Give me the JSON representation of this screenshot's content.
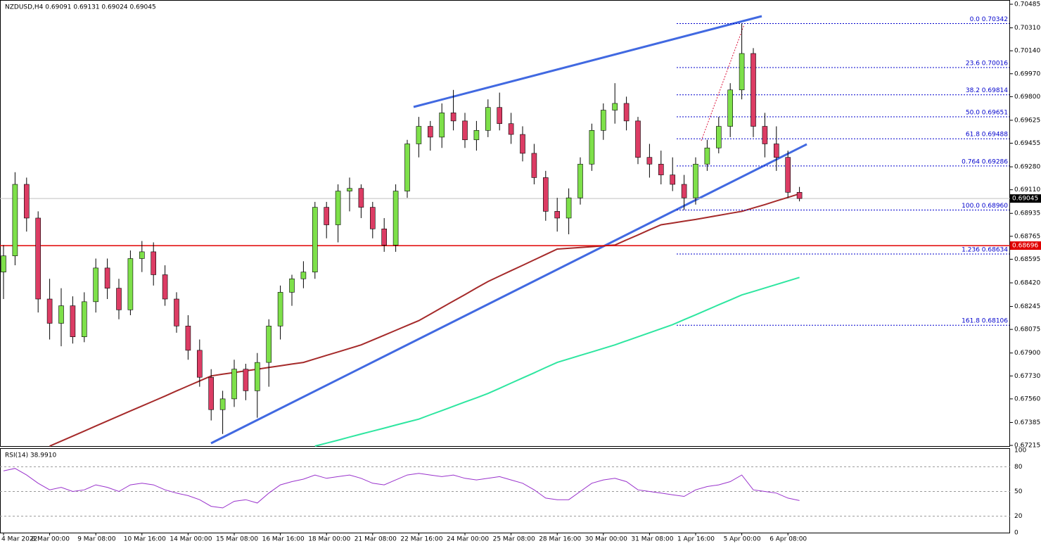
{
  "chart_data": {
    "type": "candlestick",
    "header": "NZDUSD,H4  0.69091 0.69131 0.69024 0.69045",
    "ylim": [
      0.6721,
      0.70506
    ],
    "yticks": [
      0.70485,
      {
        "value": 0.7031,
        "label": "0.70310"
      },
      {
        "value": 0.7014,
        "label": "0.70140"
      },
      {
        "value": 0.6997,
        "label": "0.69970"
      },
      {
        "value": 0.698,
        "label": "0.69800"
      },
      0.69625,
      0.69455,
      {
        "value": 0.6928,
        "label": "0.69280"
      },
      {
        "value": 0.6911,
        "label": "0.69110"
      },
      0.68935,
      0.68765,
      0.68595,
      {
        "value": 0.6842,
        "label": "0.68420"
      },
      0.68245,
      0.68075,
      {
        "value": 0.679,
        "label": "0.67900"
      },
      {
        "value": 0.6773,
        "label": "0.67730"
      },
      {
        "value": 0.6756,
        "label": "0.67560"
      },
      0.67385,
      0.67215
    ],
    "xlabels": [
      "4 Mar 2022",
      "8 Mar 00:00",
      "9 Mar 08:00",
      "10 Mar 16:00",
      "14 Mar 00:00",
      "15 Mar 08:00",
      "16 Mar 16:00",
      "18 Mar 00:00",
      "21 Mar 08:00",
      "22 Mar 16:00",
      "24 Mar 00:00",
      "25 Mar 08:00",
      "28 Mar 16:00",
      "30 Mar 00:00",
      "31 Mar 08:00",
      "1 Apr 16:00",
      "5 Apr 00:00",
      "6 Apr 08:00"
    ],
    "up_color": "#7ee04a",
    "down_color": "#dc3c64",
    "candles": [
      [
        0.685,
        0.687,
        0.683,
        0.6862
      ],
      [
        0.6862,
        0.6924,
        0.6855,
        0.6915
      ],
      [
        0.6915,
        0.692,
        0.688,
        0.689
      ],
      [
        0.689,
        0.6895,
        0.682,
        0.683
      ],
      [
        0.683,
        0.6845,
        0.68,
        0.6812
      ],
      [
        0.6812,
        0.6838,
        0.6795,
        0.6825
      ],
      [
        0.6825,
        0.6832,
        0.6797,
        0.6802
      ],
      [
        0.6802,
        0.6835,
        0.6798,
        0.6828
      ],
      [
        0.6828,
        0.686,
        0.682,
        0.6853
      ],
      [
        0.6853,
        0.686,
        0.683,
        0.6838
      ],
      [
        0.6838,
        0.6845,
        0.6815,
        0.6822
      ],
      [
        0.6822,
        0.6866,
        0.6818,
        0.686
      ],
      [
        0.686,
        0.6873,
        0.685,
        0.6865
      ],
      [
        0.6865,
        0.6872,
        0.684,
        0.6848
      ],
      [
        0.6848,
        0.6855,
        0.6825,
        0.683
      ],
      [
        0.683,
        0.6835,
        0.6805,
        0.681
      ],
      [
        0.681,
        0.6818,
        0.6785,
        0.6792
      ],
      [
        0.6792,
        0.68,
        0.6765,
        0.6772
      ],
      [
        0.6772,
        0.6778,
        0.674,
        0.6748
      ],
      [
        0.6748,
        0.6762,
        0.673,
        0.6756
      ],
      [
        0.6756,
        0.6785,
        0.675,
        0.6778
      ],
      [
        0.6778,
        0.6782,
        0.6755,
        0.6762
      ],
      [
        0.6762,
        0.679,
        0.6742,
        0.6783
      ],
      [
        0.6783,
        0.6815,
        0.6765,
        0.681
      ],
      [
        0.681,
        0.684,
        0.68,
        0.6835
      ],
      [
        0.6835,
        0.6848,
        0.6825,
        0.6845
      ],
      [
        0.6845,
        0.6858,
        0.6838,
        0.685
      ],
      [
        0.685,
        0.6902,
        0.6845,
        0.6898
      ],
      [
        0.6898,
        0.6902,
        0.6875,
        0.6885
      ],
      [
        0.6885,
        0.6915,
        0.6872,
        0.691
      ],
      [
        0.691,
        0.692,
        0.6895,
        0.6912
      ],
      [
        0.6912,
        0.6915,
        0.689,
        0.6898
      ],
      [
        0.6898,
        0.6902,
        0.6875,
        0.6882
      ],
      [
        0.6882,
        0.689,
        0.6865,
        0.687
      ],
      [
        0.687,
        0.6915,
        0.6865,
        0.691
      ],
      [
        0.691,
        0.6948,
        0.6905,
        0.6945
      ],
      [
        0.6945,
        0.6965,
        0.6935,
        0.6958
      ],
      [
        0.6958,
        0.6962,
        0.694,
        0.695
      ],
      [
        0.695,
        0.6975,
        0.6942,
        0.6968
      ],
      [
        0.6968,
        0.6985,
        0.6955,
        0.6962
      ],
      [
        0.6962,
        0.6968,
        0.6942,
        0.6948
      ],
      [
        0.6948,
        0.6962,
        0.694,
        0.6955
      ],
      [
        0.6955,
        0.6978,
        0.695,
        0.6972
      ],
      [
        0.6972,
        0.6983,
        0.6955,
        0.696
      ],
      [
        0.696,
        0.6968,
        0.6945,
        0.6952
      ],
      [
        0.6952,
        0.6958,
        0.6932,
        0.6938
      ],
      [
        0.6938,
        0.6945,
        0.6915,
        0.692
      ],
      [
        0.692,
        0.6925,
        0.6888,
        0.6895
      ],
      [
        0.6895,
        0.6905,
        0.688,
        0.689
      ],
      [
        0.689,
        0.6912,
        0.6878,
        0.6905
      ],
      [
        0.6905,
        0.6935,
        0.69,
        0.693
      ],
      [
        0.693,
        0.696,
        0.6925,
        0.6955
      ],
      [
        0.6955,
        0.6975,
        0.6948,
        0.697
      ],
      [
        0.697,
        0.699,
        0.696,
        0.6975
      ],
      [
        0.6975,
        0.698,
        0.6955,
        0.6962
      ],
      [
        0.6962,
        0.6965,
        0.693,
        0.6935
      ],
      [
        0.6935,
        0.6945,
        0.692,
        0.693
      ],
      [
        0.693,
        0.694,
        0.6915,
        0.6922
      ],
      [
        0.6922,
        0.6935,
        0.691,
        0.6915
      ],
      [
        0.6915,
        0.6922,
        0.6896,
        0.6905
      ],
      [
        0.6905,
        0.6935,
        0.69,
        0.693
      ],
      [
        0.693,
        0.6948,
        0.6925,
        0.6942
      ],
      [
        0.6942,
        0.6965,
        0.6938,
        0.6958
      ],
      [
        0.6958,
        0.699,
        0.695,
        0.6985
      ],
      [
        0.6985,
        0.70342,
        0.6978,
        0.7012
      ],
      [
        0.7012,
        0.7016,
        0.695,
        0.6958
      ],
      [
        0.6958,
        0.6968,
        0.6935,
        0.6945
      ],
      [
        0.6945,
        0.6958,
        0.6925,
        0.6935
      ],
      [
        0.6935,
        0.694,
        0.6905,
        0.69091
      ],
      [
        0.69091,
        0.69131,
        0.69024,
        0.69045
      ]
    ],
    "series": [
      {
        "name": "MA100",
        "color": "#a52a2a",
        "values": [
          null,
          null,
          null,
          null,
          0.6721,
          0.67247,
          0.67284,
          0.67321,
          0.67359,
          0.67396,
          0.67433,
          0.6747,
          0.67507,
          0.67544,
          0.67581,
          0.67619,
          0.67656,
          0.67693,
          0.6773,
          0.67743,
          0.67755,
          0.67768,
          0.6778,
          0.67793,
          0.67805,
          0.67818,
          0.6783,
          0.67856,
          0.67882,
          0.67908,
          0.67934,
          0.6796,
          0.67996,
          0.68032,
          0.68068,
          0.68104,
          0.6814,
          0.68188,
          0.68237,
          0.68285,
          0.68333,
          0.68382,
          0.6843,
          0.6847,
          0.6851,
          0.6855,
          0.6859,
          0.6863,
          0.6867,
          0.68676,
          0.68682,
          0.68688,
          0.68694,
          0.687,
          0.68738,
          0.68775,
          0.68813,
          0.6885,
          0.68863,
          0.68877,
          0.6889,
          0.68905,
          0.6892,
          0.68935,
          0.6895,
          0.68975,
          0.69,
          0.69027,
          0.69053,
          0.6908
        ]
      },
      {
        "name": "MA200",
        "color": "#2ee6a0",
        "values": [
          null,
          null,
          null,
          null,
          null,
          null,
          null,
          null,
          null,
          null,
          null,
          null,
          null,
          null,
          null,
          null,
          null,
          null,
          null,
          null,
          null,
          null,
          null,
          null,
          null,
          null,
          null,
          0.6721,
          0.67232,
          0.67254,
          0.67277,
          0.67299,
          0.67321,
          0.67343,
          0.67366,
          0.67388,
          0.6741,
          0.67442,
          0.67473,
          0.67505,
          0.67537,
          0.67568,
          0.676,
          0.67638,
          0.67677,
          0.67715,
          0.67753,
          0.67792,
          0.6783,
          0.67856,
          0.67882,
          0.67908,
          0.67934,
          0.6796,
          0.6799,
          0.6802,
          0.6805,
          0.6808,
          0.6811,
          0.68147,
          0.68183,
          0.6822,
          0.68257,
          0.68293,
          0.6833,
          0.68356,
          0.68382,
          0.68408,
          0.68434,
          0.6846
        ]
      }
    ],
    "fib_levels": [
      {
        "value": 0.70342,
        "label": "0.0 0.70342"
      },
      {
        "value": 0.70016,
        "label": "23.6 0.70016"
      },
      {
        "value": 0.69814,
        "label": "38.2 0.69814"
      },
      {
        "value": 0.69651,
        "label": "50.0 0.69651"
      },
      {
        "value": 0.69488,
        "label": "61.8 0.69488"
      },
      {
        "value": 0.69286,
        "label": "0.764 0.69286"
      },
      {
        "value": 0.6896,
        "label": "100.0 0.68960"
      },
      {
        "value": 0.68634,
        "label": "1.236 0.68634"
      },
      {
        "value": 0.68106,
        "label": "161.8 0.68106"
      }
    ],
    "level": 0.68696,
    "last_price": 0.69045,
    "rsi": {
      "label": "RSI(14) 38.9910",
      "color": "#9932cc",
      "ylim": [
        0,
        100
      ],
      "yticks": [
        0,
        20,
        50,
        80,
        100
      ],
      "values": [
        75,
        78,
        70,
        60,
        52,
        55,
        50,
        52,
        58,
        55,
        50,
        58,
        60,
        58,
        52,
        48,
        45,
        40,
        32,
        30,
        38,
        40,
        36,
        48,
        58,
        62,
        65,
        70,
        66,
        68,
        70,
        66,
        60,
        58,
        64,
        70,
        72,
        70,
        68,
        70,
        66,
        64,
        66,
        68,
        64,
        60,
        52,
        42,
        40,
        40,
        50,
        60,
        64,
        66,
        62,
        52,
        50,
        48,
        46,
        44,
        52,
        56,
        58,
        62,
        70,
        52,
        50,
        48,
        42,
        38.991
      ]
    }
  }
}
